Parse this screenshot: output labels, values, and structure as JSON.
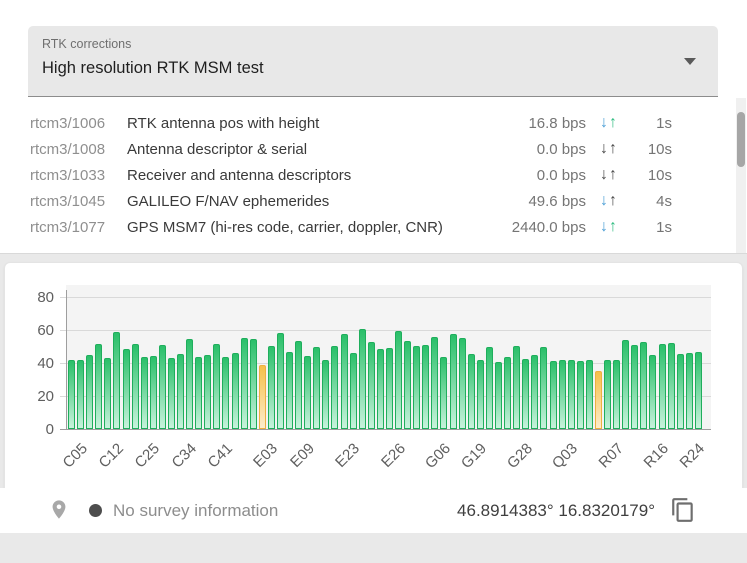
{
  "select": {
    "label": "RTK corrections",
    "value": "High resolution RTK MSM test"
  },
  "messages": {
    "rows": [
      {
        "id": "rtcm3/1006",
        "description": "RTK antenna pos with height",
        "rate": "16.8 bps",
        "download_active": true,
        "upload_active": true,
        "interval": "1s"
      },
      {
        "id": "rtcm3/1008",
        "description": "Antenna descriptor & serial",
        "rate": "0.0 bps",
        "download_active": false,
        "upload_active": false,
        "interval": "10s"
      },
      {
        "id": "rtcm3/1033",
        "description": "Receiver and antenna descriptors",
        "rate": "0.0 bps",
        "download_active": false,
        "upload_active": false,
        "interval": "10s"
      },
      {
        "id": "rtcm3/1045",
        "description": "GALILEO F/NAV ephemerides",
        "rate": "49.6 bps",
        "download_active": true,
        "upload_active": false,
        "interval": "4s"
      },
      {
        "id": "rtcm3/1077",
        "description": "GPS MSM7 (hi-res code, carrier, doppler, CNR)",
        "rate": "2440.0 bps",
        "download_active": true,
        "upload_active": true,
        "interval": "1s"
      }
    ],
    "down_arrow_glyph": "↓",
    "up_arrow_glyph": "↑"
  },
  "colors": {
    "download_active": "#4d9fd6",
    "upload_active": "#31bd82",
    "arrow_idle": "#4a4a4a",
    "bar_green_top": "#2abf69",
    "bar_green_bottom": "#c7f2dc",
    "bar_green_border": "#1fae5c",
    "bar_orange_top": "#f6c04a",
    "bar_orange_bottom": "#fdeccb",
    "bar_orange_border": "#eeb041"
  },
  "status_bar": {
    "survey_text": "No survey information",
    "coordinates": "46.8914383° 16.8320179°"
  },
  "chart_data": {
    "type": "bar",
    "title": "",
    "xlabel": "",
    "ylabel": "",
    "ylim": [
      0,
      80
    ],
    "yticks": [
      0,
      20,
      40,
      60,
      80
    ],
    "grid": true,
    "legend": false,
    "values": [
      42,
      42,
      45,
      51.5,
      43,
      58.5,
      48.5,
      51.5,
      43.5,
      44,
      51,
      43,
      45.5,
      54.5,
      43.5,
      44.5,
      51.5,
      43.5,
      46,
      55,
      54.5,
      39,
      50.5,
      58,
      46.5,
      53,
      44,
      49.5,
      41.5,
      50,
      57.5,
      46,
      60.5,
      52.5,
      48.5,
      49,
      59.5,
      53,
      50.5,
      51,
      55.5,
      43.5,
      57.5,
      55,
      45.5,
      41.5,
      49.5,
      40.5,
      43.5,
      50,
      42.5,
      44.5,
      49.5,
      41,
      41.5,
      42,
      41,
      41.5,
      35,
      42,
      41.5,
      54,
      51,
      52.5,
      45,
      51.5,
      52,
      45.5,
      46,
      46.5
    ],
    "highlighted_indices": [
      21,
      58
    ],
    "x_labels_shown": [
      "C05",
      "C12",
      "C25",
      "C34",
      "C41",
      "E03",
      "E09",
      "E23",
      "E26",
      "G06",
      "G19",
      "G28",
      "Q03",
      "R07",
      "R16",
      "R24"
    ],
    "label_positions": [
      1,
      5,
      9,
      13,
      17,
      22,
      26,
      31,
      36,
      41,
      45,
      50,
      55,
      60,
      65,
      69
    ]
  }
}
